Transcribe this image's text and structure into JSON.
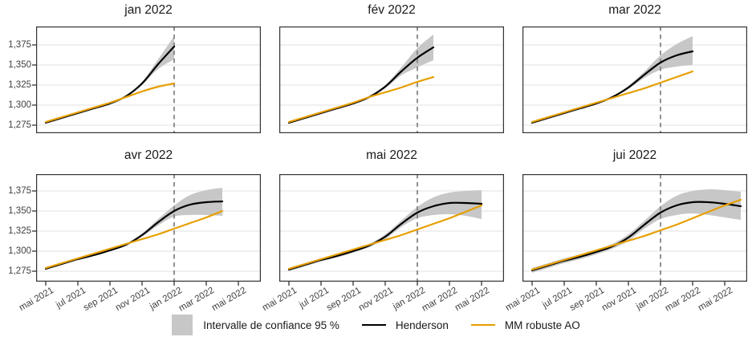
{
  "chart_data": {
    "type": "line",
    "layout_hint": "6 facets (2 rows x 3 cols), shared axes, horizontal gridlines only, dashed vertical reference line, legend bottom center",
    "x_month0": "mai 2021",
    "x_axis": {
      "tick_month_index": [
        0,
        2,
        4,
        6,
        8,
        10,
        12
      ],
      "tick_labels": [
        "mai 2021",
        "jul 2021",
        "sep 2021",
        "nov 2021",
        "jan 2022",
        "mar 2022",
        "mai 2022"
      ],
      "rotation_deg": 30
    },
    "y_axis": {
      "tick_values": [
        1275,
        1300,
        1325,
        1350,
        1375
      ],
      "tick_labels": [
        "1,275",
        "1,300",
        "1,325",
        "1,350",
        "1,375"
      ]
    },
    "reference_line": {
      "x_month_index": 8,
      "at": "jan 2022",
      "style": "dashed"
    },
    "legend": {
      "ci": "Intervalle de confiance 95 %",
      "henderson": "Henderson",
      "mm": "MM robuste AO"
    },
    "colors": {
      "henderson": "#000000",
      "mm": "#E69F00",
      "band": "#C7C7C7",
      "vline": "#7E7E7E",
      "grid": "#EBEBEB",
      "border": "#333333",
      "axis_text": "#404040",
      "title_text": "#1A1A1A",
      "background": "#FFFFFF"
    },
    "facets": [
      {
        "title": "jan 2022",
        "series": {
          "henderson": [
            1278,
            1284,
            1290,
            1296,
            1302,
            1311,
            1327,
            1351,
            1373
          ],
          "mm_robuste_ao": [
            1279,
            1285,
            1291,
            1297,
            1303,
            1310,
            1317,
            1323,
            1327
          ],
          "ci95_lower": [
            1278,
            1284,
            1290,
            1296,
            1302,
            1310.5,
            1325,
            1345,
            1357
          ],
          "ci95_upper": [
            1278,
            1284,
            1290,
            1296,
            1302,
            1311.5,
            1329,
            1357,
            1386
          ]
        }
      },
      {
        "title": "fév 2022",
        "series": {
          "henderson": [
            1278,
            1284,
            1290,
            1296,
            1302,
            1310,
            1323,
            1342,
            1359,
            1372
          ],
          "mm_robuste_ao": [
            1279,
            1285,
            1291,
            1297,
            1303,
            1310,
            1316,
            1322,
            1329,
            1335
          ],
          "ci95_lower": [
            1278,
            1284,
            1290,
            1296,
            1302,
            1309.5,
            1321,
            1337,
            1347,
            1356
          ],
          "ci95_upper": [
            1278,
            1284,
            1290,
            1296,
            1302,
            1310.5,
            1325,
            1347,
            1371,
            1388
          ]
        }
      },
      {
        "title": "mar 2022",
        "series": {
          "henderson": [
            1278,
            1284,
            1290,
            1296,
            1302,
            1310,
            1322,
            1338,
            1353,
            1362,
            1367
          ],
          "mm_robuste_ao": [
            1279,
            1285,
            1291,
            1297,
            1303,
            1309,
            1315,
            1321,
            1328,
            1335,
            1342
          ],
          "ci95_lower": [
            1278,
            1284,
            1290,
            1296,
            1302,
            1309.5,
            1320,
            1334,
            1344,
            1348,
            1350
          ],
          "ci95_upper": [
            1278,
            1284,
            1290,
            1296,
            1302,
            1310.5,
            1324,
            1342,
            1362,
            1376,
            1386
          ]
        }
      },
      {
        "title": "avr 2022",
        "series": {
          "henderson": [
            1278,
            1284,
            1290,
            1295,
            1301,
            1308,
            1320,
            1336,
            1350,
            1358,
            1361,
            1362
          ],
          "mm_robuste_ao": [
            1279,
            1285,
            1291,
            1297,
            1303,
            1309,
            1315,
            1321,
            1328,
            1335,
            1342,
            1350
          ],
          "ci95_lower": [
            1278,
            1284,
            1290,
            1295,
            1301,
            1307.5,
            1318,
            1332,
            1343,
            1345,
            1345,
            1344
          ],
          "ci95_upper": [
            1278,
            1284,
            1290,
            1295,
            1301,
            1308.5,
            1322,
            1340,
            1357,
            1370,
            1376,
            1379
          ]
        }
      },
      {
        "title": "mai 2022",
        "series": {
          "henderson": [
            1277,
            1283,
            1289,
            1294,
            1300,
            1307,
            1318,
            1334,
            1348,
            1356,
            1360,
            1360,
            1359
          ],
          "mm_robuste_ao": [
            1278,
            1284,
            1290,
            1296,
            1302,
            1308,
            1314,
            1320,
            1327,
            1334,
            1341,
            1349,
            1357
          ],
          "ci95_lower": [
            1275,
            1281,
            1287,
            1292,
            1298,
            1305,
            1315,
            1330,
            1341,
            1345,
            1346,
            1344,
            1340
          ],
          "ci95_upper": [
            1279,
            1285,
            1291,
            1296,
            1302,
            1309,
            1321,
            1338,
            1355,
            1367,
            1373,
            1375,
            1376
          ]
        }
      },
      {
        "title": "jui 2022",
        "series": {
          "henderson": [
            1276,
            1282,
            1288,
            1293,
            1299,
            1306,
            1317,
            1333,
            1348,
            1357,
            1361,
            1361,
            1359,
            1356
          ],
          "mm_robuste_ao": [
            1277,
            1283,
            1289,
            1295,
            1301,
            1307,
            1313,
            1319,
            1326,
            1333,
            1341,
            1349,
            1357,
            1364
          ],
          "ci95_lower": [
            1273,
            1279,
            1285,
            1290,
            1296,
            1303,
            1313,
            1328,
            1340,
            1345,
            1347,
            1345,
            1342,
            1339
          ],
          "ci95_upper": [
            1279,
            1285,
            1291,
            1296,
            1302,
            1309,
            1321,
            1338,
            1356,
            1369,
            1375,
            1377,
            1376,
            1374
          ]
        }
      }
    ]
  }
}
